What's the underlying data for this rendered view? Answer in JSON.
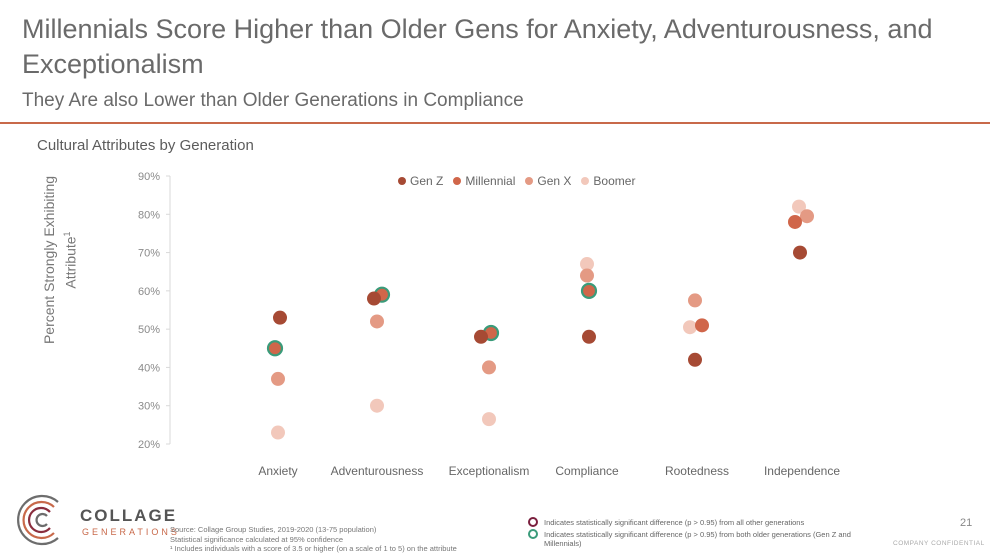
{
  "header": {
    "title": "Millennials Score Higher than Older Gens for Anxiety, Adventurousness, and Exceptionalism",
    "subtitle": "They Are also Lower than Older Generations in Compliance"
  },
  "chart_data": {
    "type": "scatter",
    "title": "Cultural Attributes by Generation",
    "ylabel": "Percent Strongly Exhibiting Attribute",
    "ylabel_superscript": "1",
    "xlabel": "",
    "ylim": [
      20,
      90
    ],
    "yticks": [
      20,
      30,
      40,
      50,
      60,
      70,
      80,
      90
    ],
    "ytick_labels": [
      "20%",
      "30%",
      "40%",
      "50%",
      "60%",
      "70%",
      "80%",
      "90%"
    ],
    "grid": false,
    "legend_position": "top",
    "categories": [
      "Anxiety",
      "Adventurousness",
      "Exceptionalism",
      "Compliance",
      "Rootedness",
      "Independence"
    ],
    "series": [
      {
        "name": "Gen Z",
        "color": "#a64a34",
        "values": [
          53,
          58,
          48,
          48,
          42,
          70
        ]
      },
      {
        "name": "Millennial",
        "color": "#d0664a",
        "values": [
          45,
          59,
          49,
          60,
          51,
          78
        ]
      },
      {
        "name": "Gen X",
        "color": "#e49a84",
        "values": [
          37,
          52,
          40,
          64,
          57.5,
          79.5
        ]
      },
      {
        "name": "Boomer",
        "color": "#f2c8bb",
        "values": [
          23,
          30,
          26.5,
          67,
          50.5,
          82
        ]
      }
    ],
    "significance": {
      "green_ring_color": "#3a9b7a",
      "maroon_ring_color": "#7a1f3d",
      "green_ring_points": [
        {
          "category": "Anxiety",
          "series": "Millennial"
        },
        {
          "category": "Adventurousness",
          "series": "Millennial"
        },
        {
          "category": "Exceptionalism",
          "series": "Millennial"
        },
        {
          "category": "Compliance",
          "series": "Millennial"
        }
      ]
    }
  },
  "footnotes": {
    "source": "Source: Collage Group Studies, 2019-2020 (13-75 population)",
    "significance_note": "Statistical significance calculated at 95% confidence",
    "footnote_1": "¹ Includes individuals with a score of 3.5 or higher (on a scale of 1 to 5) on the attribute"
  },
  "significance_legend": {
    "maroon_label": "Indicates statistically significant difference (p > 0.95) from all other generations",
    "green_label": "Indicates statistically significant difference (p > 0.95) from both older generations (Gen Z and Millennials)"
  },
  "logo": {
    "line1": "COLLAGE",
    "line2": "GENERATIONS"
  },
  "page_number": "21",
  "confidential": "COMPANY CONFIDENTIAL"
}
